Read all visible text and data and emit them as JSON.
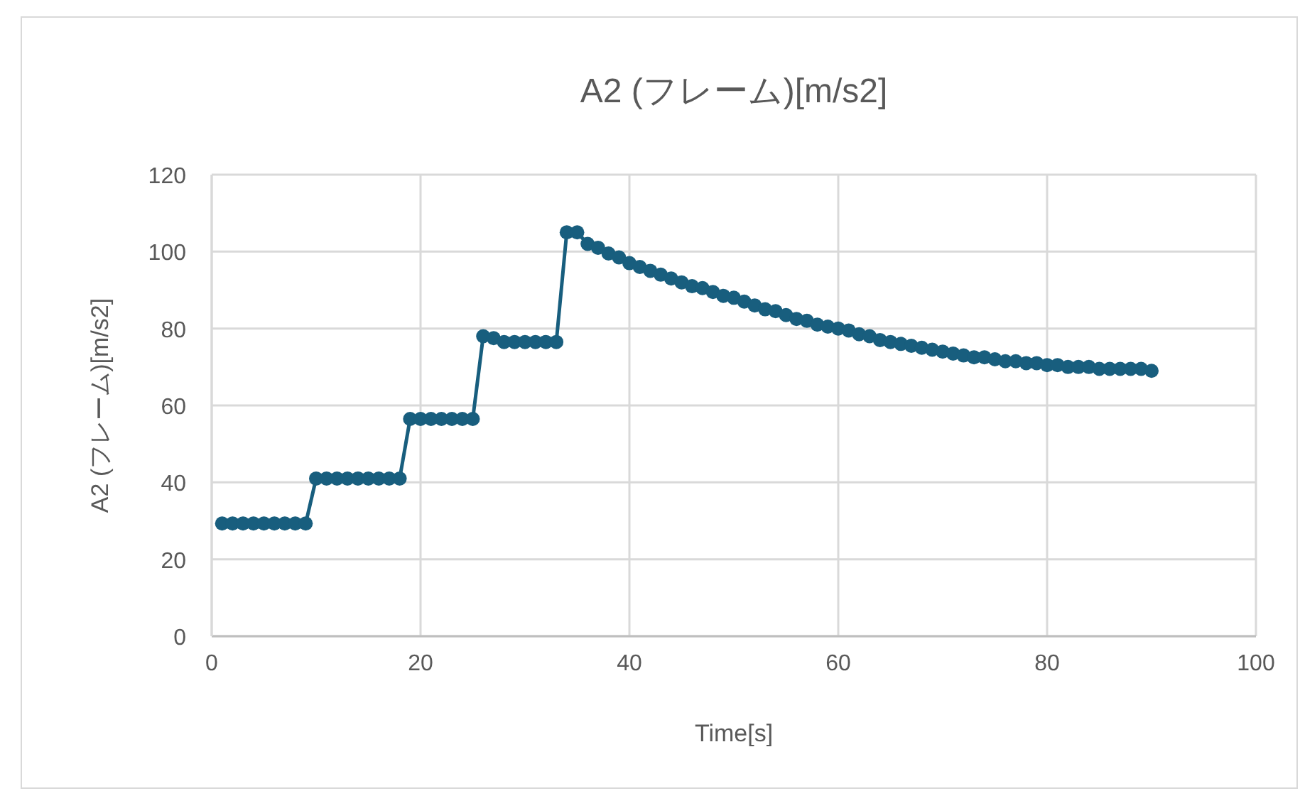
{
  "chart_data": {
    "type": "line",
    "title": "A2 (フレーム)[m/s2]",
    "xlabel": "Time[s]",
    "ylabel": "A2 (フレーム)[m/s2]",
    "x": [
      1,
      2,
      3,
      4,
      5,
      6,
      7,
      8,
      9,
      10,
      11,
      12,
      13,
      14,
      15,
      16,
      17,
      18,
      19,
      20,
      21,
      22,
      23,
      24,
      25,
      26,
      27,
      28,
      29,
      30,
      31,
      32,
      33,
      34,
      35,
      36,
      37,
      38,
      39,
      40,
      41,
      42,
      43,
      44,
      45,
      46,
      47,
      48,
      49,
      50,
      51,
      52,
      53,
      54,
      55,
      56,
      57,
      58,
      59,
      60,
      61,
      62,
      63,
      64,
      65,
      66,
      67,
      68,
      69,
      70,
      71,
      72,
      73,
      74,
      75,
      76,
      77,
      78,
      79,
      80,
      81,
      82,
      83,
      84,
      85,
      86,
      87,
      88,
      89,
      90
    ],
    "series": [
      {
        "color": "#185e7e",
        "values": [
          29.3,
          29.3,
          29.3,
          29.3,
          29.3,
          29.3,
          29.3,
          29.3,
          29.3,
          41,
          41,
          41,
          41,
          41,
          41,
          41,
          41,
          41,
          56.5,
          56.5,
          56.5,
          56.5,
          56.5,
          56.5,
          56.5,
          78,
          77.5,
          76.5,
          76.5,
          76.5,
          76.5,
          76.5,
          76.5,
          105,
          105,
          102,
          101,
          99.5,
          98.5,
          97,
          96,
          95,
          94,
          93,
          92,
          91,
          90.5,
          89.5,
          88.5,
          88,
          87,
          86,
          85,
          84.5,
          83.5,
          82.5,
          82,
          81,
          80.5,
          80,
          79.5,
          78.5,
          78,
          77,
          76.5,
          76,
          75.5,
          75,
          74.5,
          74,
          73.5,
          73,
          72.5,
          72.5,
          72,
          71.5,
          71.5,
          71,
          71,
          70.5,
          70.5,
          70,
          70,
          70,
          69.5,
          69.5,
          69.5,
          69.5,
          69.5,
          69
        ]
      }
    ],
    "xlim": [
      0,
      100
    ],
    "xticks": [
      0,
      20,
      40,
      60,
      80,
      100
    ],
    "ylim": [
      0,
      120
    ],
    "yticks": [
      0,
      20,
      40,
      60,
      80,
      100,
      120
    ],
    "grid": true,
    "marker": "circle",
    "line_style": "solid"
  }
}
